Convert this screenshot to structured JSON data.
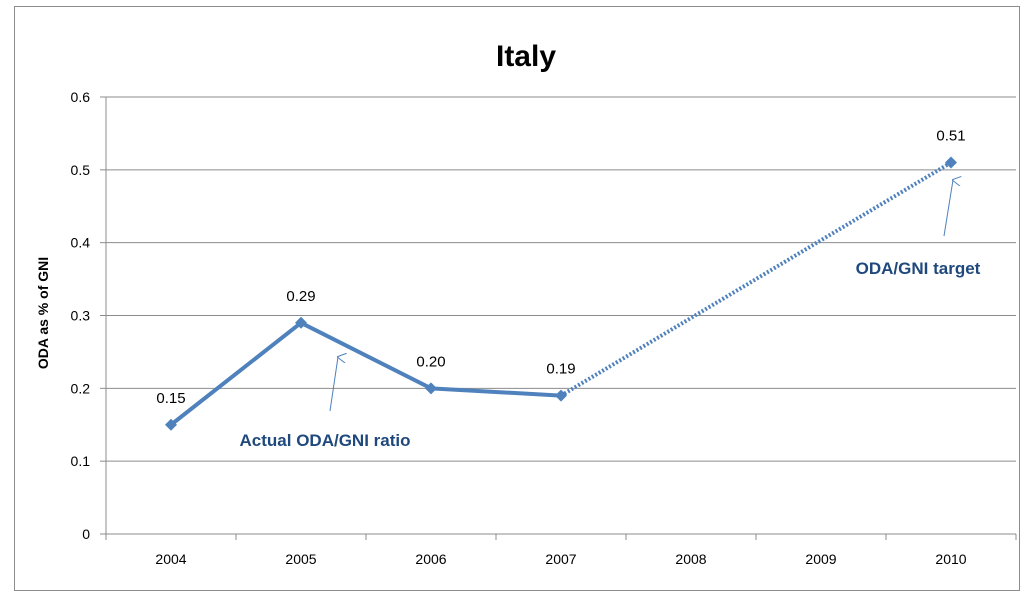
{
  "chart_data": {
    "type": "line",
    "title": "Italy",
    "ylabel": "ODA as % of GNI",
    "xlabel": "",
    "categories": [
      "2004",
      "2005",
      "2006",
      "2007",
      "2008",
      "2009",
      "2010"
    ],
    "ylim": [
      0,
      0.6
    ],
    "yticks": [
      "0",
      "0.1",
      "0.2",
      "0.3",
      "0.4",
      "0.5",
      "0.6"
    ],
    "grid": true,
    "series": [
      {
        "values": [
          0.15,
          0.29,
          0.2,
          0.19,
          null,
          null,
          0.51
        ],
        "data_labels": [
          "0.15",
          "0.29",
          "0.20",
          "0.19",
          "",
          "",
          "0.51"
        ],
        "color": "#4f81bd"
      }
    ],
    "projection": {
      "from_index": 3,
      "to_index": 6,
      "style": "dotted"
    },
    "annotations": [
      {
        "text": "Actual ODA/GNI ratio",
        "points_to_index": 1,
        "color": "#1f497d"
      },
      {
        "text": "ODA/GNI target",
        "points_to_index": 6,
        "color": "#1f497d"
      }
    ]
  }
}
